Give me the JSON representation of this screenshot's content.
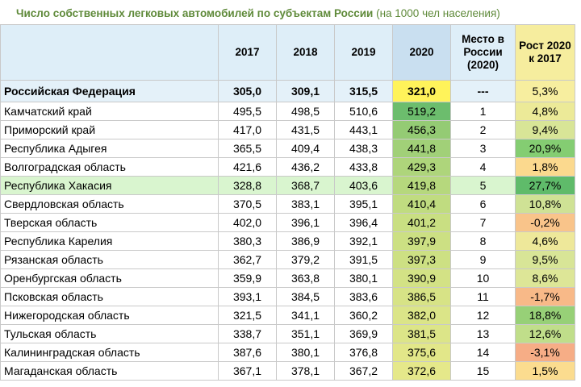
{
  "title": {
    "main": "Число собственных легковых автомобилей по субъектам России",
    "sub": "(на 1000 чел населения)"
  },
  "header": {
    "col_2017": "2017",
    "col_2018": "2018",
    "col_2019": "2019",
    "col_2020": "2020",
    "col_rank": "Место в России (2020)",
    "col_change": "Рост 2020 к 2017"
  },
  "colors": {
    "title": "#5f8a3a",
    "header_bg": "#deeef8",
    "highlight_row": "#d9f5cf",
    "total_2020": "#fff35a"
  },
  "total": {
    "name": "Российская Федерация",
    "y2017": "305,0",
    "y2018": "309,1",
    "y2019": "315,5",
    "y2020": "321,0",
    "rank": "---",
    "change": "5,3%"
  },
  "rows": [
    {
      "name": "Камчатский край",
      "y2017": "495,5",
      "y2018": "498,5",
      "y2019": "510,6",
      "y2020": "519,2",
      "rank": "1",
      "change": "4,8%",
      "bg2020": "#6cbd6d",
      "bgchg": "#ecea98"
    },
    {
      "name": "Приморский край",
      "y2017": "417,0",
      "y2018": "431,5",
      "y2019": "443,1",
      "y2020": "456,3",
      "rank": "2",
      "change": "9,4%",
      "bg2020": "#94cb74",
      "bgchg": "#d8e597"
    },
    {
      "name": "Республика Адыгея",
      "y2017": "365,5",
      "y2018": "409,4",
      "y2019": "438,3",
      "y2020": "441,8",
      "rank": "3",
      "change": "20,9%",
      "bg2020": "#a1d078",
      "bgchg": "#84cd72"
    },
    {
      "name": "Волгоградская область",
      "y2017": "421,6",
      "y2018": "436,2",
      "y2019": "433,8",
      "y2020": "429,3",
      "rank": "4",
      "change": "1,8%",
      "bg2020": "#aed57b",
      "bgchg": "#fbd98e"
    },
    {
      "name": "Республика Хакасия",
      "y2017": "328,8",
      "y2018": "368,7",
      "y2019": "403,6",
      "y2020": "419,8",
      "rank": "5",
      "change": "27,7%",
      "bg2020": "#b6d87d",
      "bgchg": "#5fbb6a",
      "highlight": true
    },
    {
      "name": "Свердловская область",
      "y2017": "370,5",
      "y2018": "383,1",
      "y2019": "395,1",
      "y2020": "410,4",
      "rank": "6",
      "change": "10,8%",
      "bg2020": "#c0dc80",
      "bgchg": "#cfe295"
    },
    {
      "name": "Тверская область",
      "y2017": "402,0",
      "y2018": "396,1",
      "y2019": "396,4",
      "y2020": "401,2",
      "rank": "7",
      "change": "-0,2%",
      "bg2020": "#c9df82",
      "bgchg": "#f9c48a"
    },
    {
      "name": "Республика Карелия",
      "y2017": "380,3",
      "y2018": "386,9",
      "y2019": "392,1",
      "y2020": "397,9",
      "rank": "8",
      "change": "4,6%",
      "bg2020": "#cce083",
      "bgchg": "#eee89a"
    },
    {
      "name": "Рязанская область",
      "y2017": "362,7",
      "y2018": "379,2",
      "y2019": "391,5",
      "y2020": "397,3",
      "rank": "9",
      "change": "9,5%",
      "bg2020": "#cde083",
      "bgchg": "#d8e597"
    },
    {
      "name": "Оренбургская область",
      "y2017": "359,9",
      "y2018": "363,8",
      "y2019": "380,1",
      "y2020": "390,9",
      "rank": "10",
      "change": "8,6%",
      "bg2020": "#d3e285",
      "bgchg": "#dde697"
    },
    {
      "name": "Псковская область",
      "y2017": "393,1",
      "y2018": "384,5",
      "y2019": "383,6",
      "y2020": "386,5",
      "rank": "11",
      "change": "-1,7%",
      "bg2020": "#d7e386",
      "bgchg": "#f8b988"
    },
    {
      "name": "Нижегородская область",
      "y2017": "321,5",
      "y2018": "341,1",
      "y2019": "360,2",
      "y2020": "382,0",
      "rank": "12",
      "change": "18,8%",
      "bg2020": "#dbe588",
      "bgchg": "#97d077"
    },
    {
      "name": "Тульская область",
      "y2017": "338,7",
      "y2018": "351,1",
      "y2019": "369,9",
      "y2020": "381,5",
      "rank": "13",
      "change": "12,6%",
      "bg2020": "#dce588",
      "bgchg": "#c0de8a"
    },
    {
      "name": "Калининградская область",
      "y2017": "387,6",
      "y2018": "380,1",
      "y2019": "376,8",
      "y2020": "375,6",
      "rank": "14",
      "change": "-3,1%",
      "bg2020": "#e2e789",
      "bgchg": "#f6ad86"
    },
    {
      "name": "Магаданская область",
      "y2017": "367,1",
      "y2018": "378,1",
      "y2019": "367,2",
      "y2020": "372,6",
      "rank": "15",
      "change": "1,5%",
      "bg2020": "#e5e88a",
      "bgchg": "#fbdc8f"
    }
  ]
}
